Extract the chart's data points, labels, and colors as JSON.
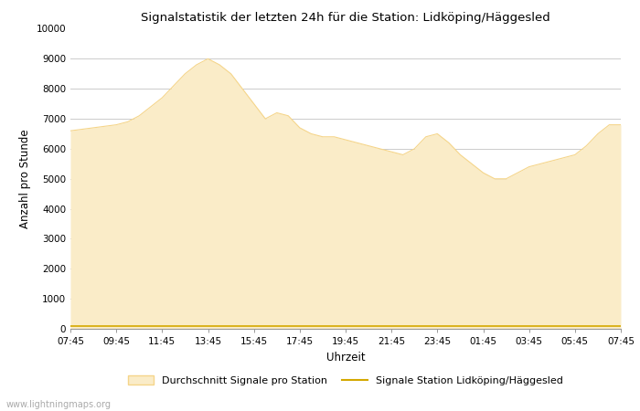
{
  "title": "Signalstatistik der letzten 24h für die Station: Lidköping/Häggesled",
  "xlabel": "Uhrzeit",
  "ylabel": "Anzahl pro Stunde",
  "x_labels": [
    "07:45",
    "09:45",
    "11:45",
    "13:45",
    "15:45",
    "17:45",
    "19:45",
    "21:45",
    "23:45",
    "01:45",
    "03:45",
    "05:45",
    "07:45"
  ],
  "ylim": [
    0,
    10000
  ],
  "yticks": [
    0,
    1000,
    2000,
    3000,
    4000,
    5000,
    6000,
    7000,
    8000,
    9000,
    10000
  ],
  "fill_color": "#FAECC8",
  "fill_edge_color": "#F5D58A",
  "line_color": "#D4A800",
  "background_color": "#ffffff",
  "grid_color": "#cccccc",
  "watermark": "www.lightningmaps.org",
  "legend_fill_label": "Durchschnitt Signale pro Station",
  "legend_line_label": "Signale Station Lidköping/Häggesled",
  "avg_y": [
    6600,
    6650,
    6700,
    6750,
    6800,
    6900,
    7100,
    7400,
    7700,
    8100,
    8500,
    8800,
    9000,
    8800,
    8500,
    8000,
    7500,
    7000,
    7200,
    7100,
    6700,
    6500,
    6400,
    6400,
    6300,
    6200,
    6100,
    6000,
    5900,
    5800,
    6000,
    6400,
    6500,
    6200,
    5800,
    5500,
    5200,
    5000,
    5000,
    5200,
    5400,
    5500,
    5600,
    5700,
    5800,
    6100,
    6500,
    6800,
    6800
  ],
  "station_y": [
    100,
    100,
    100,
    100,
    100,
    100,
    100,
    100,
    100,
    100,
    100,
    100,
    100,
    100,
    100,
    100,
    100,
    100,
    100,
    100,
    100,
    100,
    100,
    100,
    100,
    100,
    100,
    100,
    100,
    100,
    100,
    100,
    100,
    100,
    100,
    100,
    100,
    100,
    100,
    100,
    100,
    100,
    100,
    100,
    100,
    100,
    100,
    100,
    100
  ]
}
